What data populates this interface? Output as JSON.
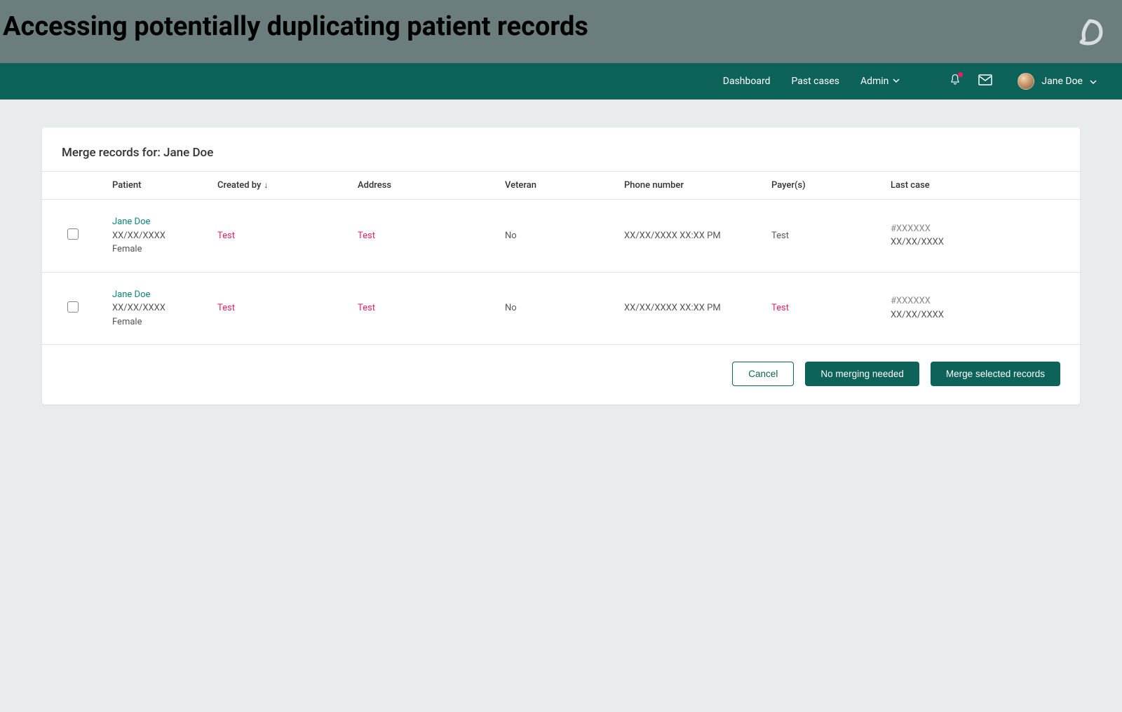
{
  "banner": {
    "title": "Accessing potentially duplicating patient records"
  },
  "nav": {
    "links": {
      "dashboard": "Dashboard",
      "past_cases": "Past cases",
      "admin": "Admin"
    },
    "user_name": "Jane Doe"
  },
  "card": {
    "title": "Merge records for: Jane Doe",
    "columns": {
      "patient": "Patient",
      "created_by": "Created by",
      "address": "Address",
      "veteran": "Veteran",
      "phone": "Phone number",
      "payer": "Payer(s)",
      "last_case": "Last case"
    },
    "rows": [
      {
        "patient_name": "Jane Doe",
        "patient_dob": "XX/XX/XXXX",
        "patient_gender": "Female",
        "created_by": "Test",
        "created_by_pink": true,
        "address": "Test",
        "address_pink": true,
        "veteran": "No",
        "phone": "XX/XX/XXXX XX:XX PM",
        "payer": "Test",
        "payer_pink": false,
        "case_id": "#XXXXXX",
        "case_date": "XX/XX/XXXX"
      },
      {
        "patient_name": "Jane Doe",
        "patient_dob": "XX/XX/XXXX",
        "patient_gender": "Female",
        "created_by": "Test",
        "created_by_pink": true,
        "address": "Test",
        "address_pink": true,
        "veteran": "No",
        "phone": "XX/XX/XXXX XX:XX PM",
        "payer": "Test",
        "payer_pink": true,
        "case_id": "#XXXXXX",
        "case_date": "XX/XX/XXXX"
      }
    ],
    "buttons": {
      "cancel": "Cancel",
      "no_merge": "No merging needed",
      "merge": "Merge selected records"
    }
  },
  "colors": {
    "banner_bg": "#6c7d7d",
    "navbar_bg": "#0d6359",
    "page_bg": "#e8ecec",
    "pink": "#e91e63",
    "teal_link": "#0d8478"
  }
}
